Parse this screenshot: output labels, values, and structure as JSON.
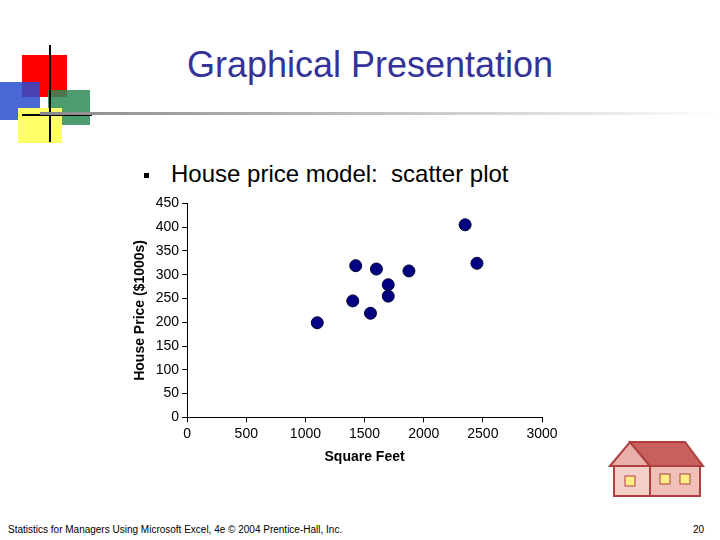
{
  "slide": {
    "title": "Graphical Presentation",
    "bullet": "House price model:  scatter plot",
    "footer": "Statistics for Managers Using Microsoft Excel, 4e © 2004 Prentice-Hall, Inc.",
    "page": "20"
  },
  "chart_data": {
    "type": "scatter",
    "x_label": "Square Feet",
    "y_label": "House Price ($1000s)",
    "x": [
      1100,
      1400,
      1425,
      1550,
      1600,
      1700,
      1700,
      1875,
      2350,
      2450
    ],
    "values": [
      199,
      245,
      319,
      219,
      312,
      279,
      255,
      308,
      405,
      324
    ],
    "color": "#000080",
    "marker": "circle",
    "xlim": [
      0,
      3000
    ],
    "xticks": [
      0,
      500,
      1000,
      1500,
      2000,
      2500,
      3000
    ],
    "ylim": [
      0,
      450
    ],
    "yticks": [
      0,
      50,
      100,
      150,
      200,
      250,
      300,
      350,
      400,
      450
    ],
    "grid": false
  }
}
